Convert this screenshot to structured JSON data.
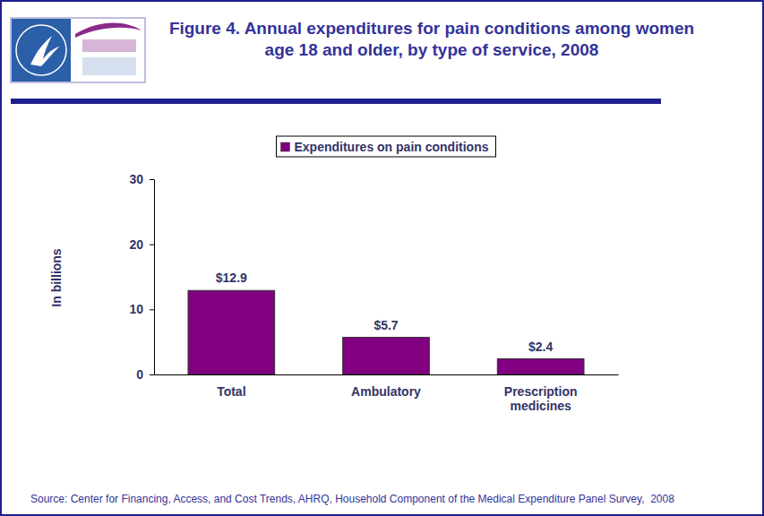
{
  "chart_data": {
    "type": "bar",
    "title": "Figure 4. Annual expenditures for pain conditions among women age 18 and older, by type of service, 2008",
    "y_label": "In billions",
    "source": "Source: Center for Financing, Access, and Cost Trends, AHRQ, Household Component of the Medical Expenditure Panel Survey,  2008",
    "categories": [
      "Total",
      "Ambulatory",
      "Prescription medicines"
    ],
    "series": [
      {
        "name": "Expenditures on pain conditions",
        "color": "#800080",
        "values": [
          12.9,
          5.7,
          2.4
        ],
        "value_labels": [
          "$12.9",
          "$5.7",
          "$2.4"
        ]
      }
    ],
    "ylim": [
      0,
      30
    ],
    "yticks": [
      0,
      10,
      20,
      30
    ],
    "grid": false,
    "legend": "top",
    "data_labels": true
  }
}
